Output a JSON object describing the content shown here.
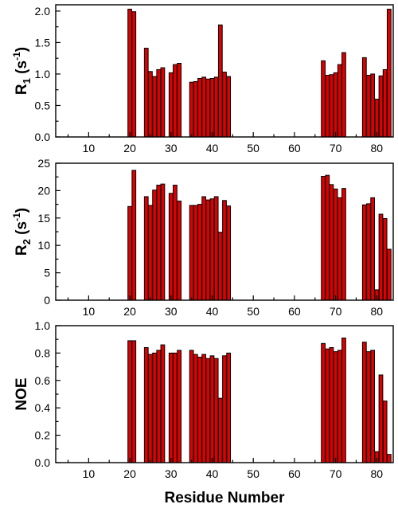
{
  "chart_data": [
    {
      "type": "bar",
      "ylabel": "R1 (s-1)",
      "ylabel_parts": {
        "base": "R",
        "sub": "1",
        "rest": " (s",
        "sup": "-1",
        "close": ")"
      },
      "xlim": [
        2,
        84
      ],
      "ylim": [
        0,
        2.1
      ],
      "yticks": [
        0.0,
        0.5,
        1.0,
        1.5,
        2.0
      ],
      "ytick_labels": [
        "0.0",
        "0.5",
        "1.0",
        "1.5",
        "2.0"
      ],
      "xticks": [
        10,
        20,
        30,
        40,
        50,
        60,
        70,
        80
      ],
      "xtick_labels": [
        "10",
        "20",
        "30",
        "40",
        "50",
        "60",
        "70",
        "80"
      ],
      "x": [
        20,
        21,
        24,
        25,
        26,
        27,
        28,
        30,
        31,
        32,
        35,
        36,
        37,
        38,
        39,
        40,
        41,
        42,
        43,
        44,
        67,
        68,
        69,
        70,
        71,
        72,
        77,
        78,
        79,
        80,
        81,
        82,
        83
      ],
      "values": [
        2.03,
        1.99,
        1.41,
        1.04,
        0.96,
        1.07,
        1.1,
        1.02,
        1.15,
        1.17,
        0.87,
        0.88,
        0.93,
        0.95,
        0.92,
        0.93,
        0.95,
        1.78,
        1.03,
        0.96,
        1.21,
        0.98,
        0.99,
        1.02,
        1.15,
        1.34,
        1.26,
        0.98,
        1.0,
        0.6,
        0.97,
        1.07,
        2.03
      ]
    },
    {
      "type": "bar",
      "ylabel": "R2 (s-1)",
      "ylabel_parts": {
        "base": "R",
        "sub": "2",
        "rest": " (s",
        "sup": "-1",
        "close": ")"
      },
      "xlim": [
        2,
        84
      ],
      "ylim": [
        0,
        25
      ],
      "yticks": [
        0,
        5,
        10,
        15,
        20,
        25
      ],
      "ytick_labels": [
        "0",
        "5",
        "10",
        "15",
        "20",
        "25"
      ],
      "xticks": [
        10,
        20,
        30,
        40,
        50,
        60,
        70,
        80
      ],
      "xtick_labels": [
        "10",
        "20",
        "30",
        "40",
        "50",
        "60",
        "70",
        "80"
      ],
      "x": [
        20,
        21,
        24,
        25,
        26,
        27,
        28,
        30,
        31,
        32,
        35,
        36,
        37,
        38,
        39,
        40,
        41,
        42,
        43,
        44,
        67,
        68,
        69,
        70,
        71,
        72,
        77,
        78,
        79,
        80,
        81,
        82,
        83
      ],
      "values": [
        17.1,
        23.7,
        18.9,
        17.3,
        20.1,
        21.0,
        21.2,
        19.5,
        21.0,
        18.1,
        17.3,
        17.3,
        17.5,
        18.9,
        18.3,
        18.5,
        18.9,
        12.4,
        18.2,
        17.2,
        22.6,
        22.8,
        21.1,
        20.3,
        18.7,
        20.4,
        17.4,
        17.6,
        18.7,
        1.9,
        15.7,
        14.9,
        9.3
      ]
    },
    {
      "type": "bar",
      "ylabel": "NOE",
      "xlabel": "Residue Number",
      "xlim": [
        2,
        84
      ],
      "ylim": [
        0,
        1.0
      ],
      "yticks": [
        0.0,
        0.2,
        0.4,
        0.6,
        0.8,
        1.0
      ],
      "ytick_labels": [
        "0.0",
        "0.2",
        "0.4",
        "0.6",
        "0.8",
        "1.0"
      ],
      "xticks": [
        10,
        20,
        30,
        40,
        50,
        60,
        70,
        80
      ],
      "xtick_labels": [
        "10",
        "20",
        "30",
        "40",
        "50",
        "60",
        "70",
        "80"
      ],
      "x": [
        20,
        21,
        24,
        25,
        26,
        27,
        28,
        30,
        31,
        32,
        35,
        36,
        37,
        38,
        39,
        40,
        41,
        42,
        43,
        44,
        67,
        68,
        69,
        70,
        71,
        72,
        77,
        78,
        79,
        80,
        81,
        82,
        83
      ],
      "values": [
        0.89,
        0.89,
        0.84,
        0.79,
        0.8,
        0.82,
        0.86,
        0.8,
        0.8,
        0.82,
        0.82,
        0.79,
        0.77,
        0.79,
        0.76,
        0.78,
        0.76,
        0.47,
        0.78,
        0.8,
        0.87,
        0.83,
        0.84,
        0.81,
        0.82,
        0.91,
        0.88,
        0.81,
        0.82,
        0.08,
        0.64,
        0.45,
        0.06
      ]
    }
  ]
}
